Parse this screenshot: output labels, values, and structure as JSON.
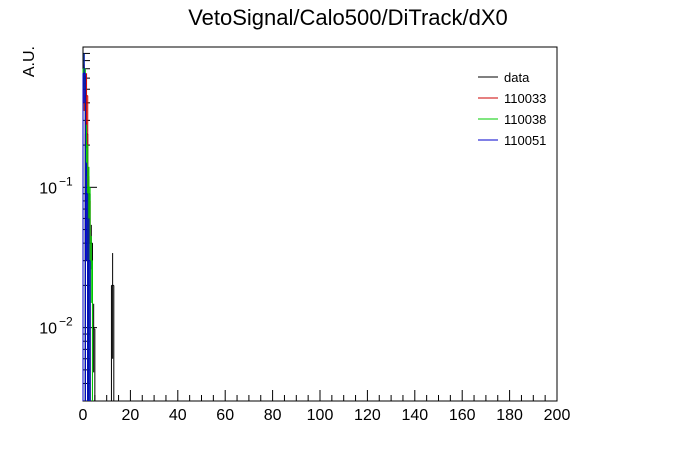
{
  "chart_data": {
    "type": "line",
    "title": "VetoSignal/Calo500/DiTrack/dX0",
    "xlabel": "",
    "ylabel": "A.U.",
    "xlim": [
      0,
      200
    ],
    "ylim": [
      0.003,
      1.0
    ],
    "y_scale": "log",
    "x_ticks": [
      0,
      20,
      40,
      60,
      80,
      100,
      120,
      140,
      160,
      180,
      200
    ],
    "x_tick_labels": [
      "0",
      "20",
      "40",
      "60",
      "80",
      "100",
      "120",
      "140",
      "160",
      "180",
      "200"
    ],
    "y_ticks": [
      {
        "value": 0.1,
        "base": "10",
        "exp": "−1"
      },
      {
        "value": 0.01,
        "base": "10",
        "exp": "−2"
      }
    ],
    "grid": false,
    "legend_position": "top-right",
    "bin_width": 1,
    "series": [
      {
        "name": "data",
        "color": "#000000",
        "errors": true,
        "points": [
          {
            "x": 0.5,
            "y": 0.62,
            "err": 0.1
          },
          {
            "x": 1.5,
            "y": 0.24,
            "err": 0.05
          },
          {
            "x": 2.5,
            "y": 0.09,
            "err": 0.025
          },
          {
            "x": 3.5,
            "y": 0.04,
            "err": 0.014
          },
          {
            "x": 4.5,
            "y": 0.0098,
            "err": 0.005
          },
          {
            "x": 12.5,
            "y": 0.02,
            "err": 0.014
          }
        ]
      },
      {
        "name": "110033",
        "color": "#cc0000",
        "errors": true,
        "points": [
          {
            "x": 0.5,
            "y": 0.55,
            "err": 0.2
          },
          {
            "x": 1.5,
            "y": 0.45,
            "err": 0.2
          },
          {
            "x": 2.5,
            "y": 0.08,
            "err": 0.04
          }
        ]
      },
      {
        "name": "110038",
        "color": "#00cc00",
        "errors": true,
        "points": [
          {
            "x": 0.5,
            "y": 0.7,
            "err": 0.2
          },
          {
            "x": 1.5,
            "y": 0.2,
            "err": 0.08
          },
          {
            "x": 2.5,
            "y": 0.1,
            "err": 0.04
          },
          {
            "x": 3.5,
            "y": 0.03,
            "err": 0.015
          }
        ]
      },
      {
        "name": "110051",
        "color": "#0000cc",
        "errors": true,
        "points": [
          {
            "x": 0.5,
            "y": 0.65,
            "err": 0.25
          },
          {
            "x": 1.5,
            "y": 0.09,
            "err": 0.06
          },
          {
            "x": 2.5,
            "y": 0.03,
            "err": 0.03
          }
        ]
      }
    ]
  }
}
